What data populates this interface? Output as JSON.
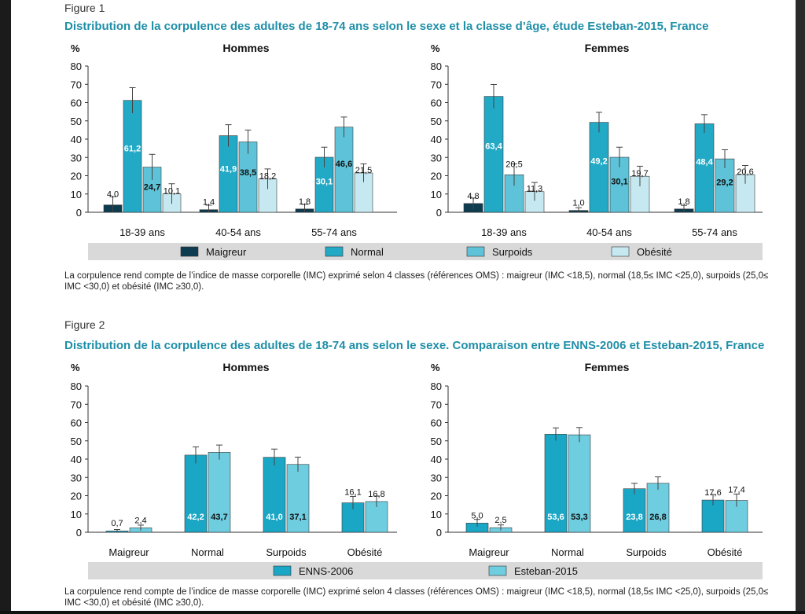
{
  "colors": {
    "maigreur": "#0d3b4f",
    "normal": "#22a9c6",
    "surpoids": "#5ec3d8",
    "obesite": "#c6e9f1",
    "enns": "#1aa6c5",
    "esteban": "#6fcde0",
    "title": "#1f8fa8",
    "legend_band": "#d9d9d9"
  },
  "figure1": {
    "label": "Figure 1",
    "title": "Distribution de la corpulence des adultes de 18-74 ans selon le sexe et la classe d’âge, étude Esteban-2015, France",
    "note": "La corpulence rend compte de l’indice de masse corporelle (IMC) exprimé selon 4 classes (références OMS) : maigreur (IMC <18,5), normal (18,5≤ IMC <25,0), surpoids (25,0≤ IMC <30,0) et obésité (IMC ≥30,0).",
    "legend": [
      "Maigreur",
      "Normal",
      "Surpoids",
      "Obésité"
    ]
  },
  "figure2": {
    "label": "Figure 2",
    "title": "Distribution de la corpulence des adultes de 18-74 ans selon le sexe. Comparaison entre ENNS-2006 et Esteban-2015, France",
    "note": "La corpulence rend compte de l’indice de masse corporelle (IMC) exprimé selon 4 classes (références OMS) : maigreur (IMC <18,5), normal (18,5≤ IMC <25,0), surpoids (25,0≤ IMC <30,0) et obésité (IMC ≥30,0).",
    "legend": [
      "ENNS-2006",
      "Esteban-2015"
    ]
  },
  "chart_data": [
    {
      "type": "bar",
      "title": "Hommes",
      "ylabel": "%",
      "ylim": [
        0,
        80
      ],
      "yticks": [
        0,
        10,
        20,
        30,
        40,
        50,
        60,
        70,
        80
      ],
      "categories": [
        "18-39 ans",
        "40-54 ans",
        "55-74 ans"
      ],
      "series": [
        {
          "name": "Maigreur",
          "values": [
            4.0,
            1.4,
            1.8
          ],
          "labels": [
            "4,0",
            "1,4",
            "1,8"
          ],
          "err": [
            4.5,
            2.5,
            2.5
          ]
        },
        {
          "name": "Normal",
          "values": [
            61.2,
            41.9,
            30.1
          ],
          "labels": [
            "61,2",
            "41,9",
            "30,1"
          ],
          "err": [
            7,
            6,
            5.5
          ]
        },
        {
          "name": "Surpoids",
          "values": [
            24.7,
            38.5,
            46.6
          ],
          "labels": [
            "24,7",
            "38,5",
            "46,6"
          ],
          "err": [
            7,
            6.5,
            5.5
          ]
        },
        {
          "name": "Obésité",
          "values": [
            10.1,
            18.2,
            21.5
          ],
          "labels": [
            "10,1",
            "18,2",
            "21,5"
          ],
          "err": [
            5.5,
            5.5,
            5
          ]
        }
      ]
    },
    {
      "type": "bar",
      "title": "Femmes",
      "ylabel": "%",
      "ylim": [
        0,
        80
      ],
      "yticks": [
        0,
        10,
        20,
        30,
        40,
        50,
        60,
        70,
        80
      ],
      "categories": [
        "18-39 ans",
        "40-54 ans",
        "55-74 ans"
      ],
      "series": [
        {
          "name": "Maigreur",
          "values": [
            4.8,
            1.0,
            1.8
          ],
          "labels": [
            "4,8",
            "1,0",
            "1,8"
          ],
          "err": [
            3,
            1.5,
            2
          ]
        },
        {
          "name": "Normal",
          "values": [
            63.4,
            49.2,
            48.4
          ],
          "labels": [
            "63,4",
            "49,2",
            "48,4"
          ],
          "err": [
            6.5,
            5.5,
            5
          ]
        },
        {
          "name": "Surpoids",
          "values": [
            20.5,
            30.1,
            29.2
          ],
          "labels": [
            "20,5",
            "30,1",
            "29,2"
          ],
          "err": [
            6,
            5.5,
            5
          ]
        },
        {
          "name": "Obésité",
          "values": [
            11.3,
            19.7,
            20.6
          ],
          "labels": [
            "11,3",
            "19,7",
            "20,6"
          ],
          "err": [
            5,
            5.5,
            5
          ]
        }
      ]
    },
    {
      "type": "bar",
      "title": "Hommes",
      "ylabel": "%",
      "ylim": [
        0,
        80
      ],
      "yticks": [
        0,
        10,
        20,
        30,
        40,
        50,
        60,
        70,
        80
      ],
      "categories": [
        "Maigreur",
        "Normal",
        "Surpoids",
        "Obésité"
      ],
      "series": [
        {
          "name": "ENNS-2006",
          "values": [
            0.7,
            42.2,
            41.0,
            16.1
          ],
          "labels": [
            "0,7",
            "42,2",
            "41,0",
            "16,1"
          ],
          "err": [
            0.8,
            4.5,
            4.5,
            3.5
          ]
        },
        {
          "name": "Esteban-2015",
          "values": [
            2.4,
            43.7,
            37.1,
            16.8
          ],
          "labels": [
            "2,4",
            "43,7",
            "37,1",
            "16,8"
          ],
          "err": [
            1.5,
            4,
            4,
            3
          ]
        }
      ]
    },
    {
      "type": "bar",
      "title": "Femmes",
      "ylabel": "%",
      "ylim": [
        0,
        80
      ],
      "yticks": [
        0,
        10,
        20,
        30,
        40,
        50,
        60,
        70,
        80
      ],
      "categories": [
        "Maigreur",
        "Normal",
        "Surpoids",
        "Obésité"
      ],
      "series": [
        {
          "name": "ENNS-2006",
          "values": [
            5.0,
            53.6,
            23.8,
            17.6
          ],
          "labels": [
            "5,0",
            "53,6",
            "23,8",
            "17,6"
          ],
          "err": [
            2,
            3.5,
            3,
            3
          ]
        },
        {
          "name": "Esteban-2015",
          "values": [
            2.5,
            53.3,
            26.8,
            17.4
          ],
          "labels": [
            "2,5",
            "53,3",
            "26,8",
            "17,4"
          ],
          "err": [
            1.5,
            4,
            3.5,
            3.5
          ]
        }
      ]
    }
  ]
}
